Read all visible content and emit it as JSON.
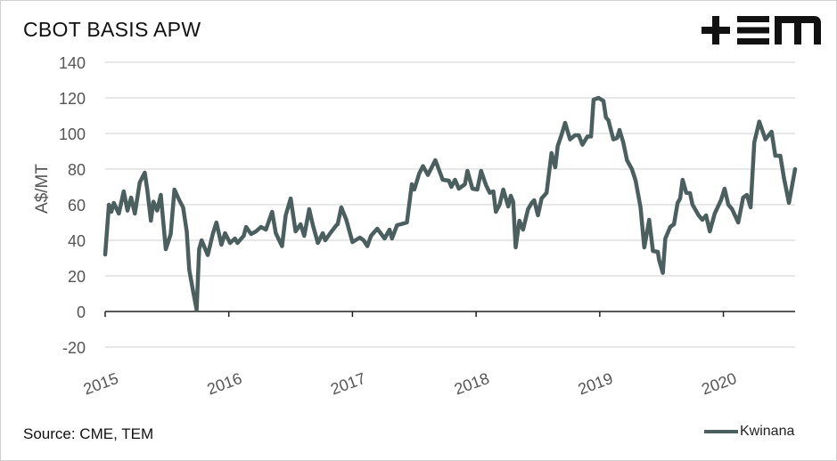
{
  "chart_data": {
    "type": "line",
    "title": "CBOT BASIS APW",
    "xlabel": "",
    "ylabel": "A$/MT",
    "ylim": [
      -20,
      140
    ],
    "yticks": [
      140,
      120,
      100,
      80,
      60,
      40,
      20,
      0,
      -20
    ],
    "xlim": [
      2015,
      2020.58
    ],
    "xticks": [
      2015,
      2016,
      2017,
      2018,
      2019,
      2020
    ],
    "xtick_labels": [
      "2015",
      "2016",
      "2017",
      "2018",
      "2019",
      "2020"
    ],
    "grid": true,
    "legend_position": "bottom-right",
    "series": [
      {
        "name": "Kwinana",
        "color": "#4b5f5f",
        "points": [
          [
            2015.0,
            32
          ],
          [
            2015.03,
            60
          ],
          [
            2015.05,
            56
          ],
          [
            2015.07,
            61
          ],
          [
            2015.11,
            55
          ],
          [
            2015.15,
            67.5
          ],
          [
            2015.18,
            56.7
          ],
          [
            2015.21,
            64
          ],
          [
            2015.24,
            55
          ],
          [
            2015.28,
            72.5
          ],
          [
            2015.32,
            78
          ],
          [
            2015.34,
            68.5
          ],
          [
            2015.37,
            51
          ],
          [
            2015.39,
            61.7
          ],
          [
            2015.42,
            56.7
          ],
          [
            2015.45,
            65.5
          ],
          [
            2015.49,
            35
          ],
          [
            2015.53,
            43.5
          ],
          [
            2015.56,
            68.5
          ],
          [
            2015.6,
            62.5
          ],
          [
            2015.63,
            58.5
          ],
          [
            2015.66,
            45
          ],
          [
            2015.68,
            23.5
          ],
          [
            2015.71,
            11.7
          ],
          [
            2015.74,
            1
          ],
          [
            2015.76,
            35
          ],
          [
            2015.78,
            40
          ],
          [
            2015.83,
            31.7
          ],
          [
            2015.87,
            43.5
          ],
          [
            2015.9,
            50
          ],
          [
            2015.94,
            37.5
          ],
          [
            2015.97,
            44
          ],
          [
            2016.01,
            38.5
          ],
          [
            2016.05,
            41
          ],
          [
            2016.07,
            38.5
          ],
          [
            2016.12,
            42.5
          ],
          [
            2016.14,
            47.5
          ],
          [
            2016.18,
            43.5
          ],
          [
            2016.22,
            45
          ],
          [
            2016.26,
            47.5
          ],
          [
            2016.3,
            46
          ],
          [
            2016.35,
            56
          ],
          [
            2016.38,
            44
          ],
          [
            2016.43,
            36.7
          ],
          [
            2016.46,
            54
          ],
          [
            2016.5,
            63.5
          ],
          [
            2016.54,
            45
          ],
          [
            2016.58,
            49
          ],
          [
            2016.61,
            42.5
          ],
          [
            2016.65,
            57.5
          ],
          [
            2016.68,
            48.5
          ],
          [
            2016.72,
            38.5
          ],
          [
            2016.76,
            44
          ],
          [
            2016.78,
            40
          ],
          [
            2016.82,
            44
          ],
          [
            2016.87,
            48.5
          ],
          [
            2016.88,
            49
          ],
          [
            2016.91,
            58.5
          ],
          [
            2016.95,
            51.5
          ],
          [
            2017.0,
            39
          ],
          [
            2017.06,
            41.5
          ],
          [
            2017.09,
            40
          ],
          [
            2017.12,
            36.7
          ],
          [
            2017.15,
            42.5
          ],
          [
            2017.2,
            46.5
          ],
          [
            2017.26,
            41
          ],
          [
            2017.3,
            46
          ],
          [
            2017.32,
            41
          ],
          [
            2017.36,
            48.5
          ],
          [
            2017.39,
            49
          ],
          [
            2017.44,
            50
          ],
          [
            2017.48,
            71.5
          ],
          [
            2017.5,
            68.5
          ],
          [
            2017.54,
            77.5
          ],
          [
            2017.57,
            81.7
          ],
          [
            2017.61,
            76.7
          ],
          [
            2017.67,
            85
          ],
          [
            2017.73,
            74
          ],
          [
            2017.78,
            73.5
          ],
          [
            2017.8,
            70
          ],
          [
            2017.83,
            74
          ],
          [
            2017.86,
            69
          ],
          [
            2017.91,
            71.5
          ],
          [
            2017.93,
            79
          ],
          [
            2017.97,
            69
          ],
          [
            2018.01,
            68.5
          ],
          [
            2018.04,
            79
          ],
          [
            2018.08,
            71
          ],
          [
            2018.11,
            66.7
          ],
          [
            2018.14,
            67.5
          ],
          [
            2018.16,
            56
          ],
          [
            2018.19,
            60
          ],
          [
            2018.22,
            68.5
          ],
          [
            2018.26,
            59
          ],
          [
            2018.28,
            65
          ],
          [
            2018.3,
            61.7
          ],
          [
            2018.32,
            36
          ],
          [
            2018.35,
            51
          ],
          [
            2018.38,
            46
          ],
          [
            2018.42,
            57.5
          ],
          [
            2018.45,
            61
          ],
          [
            2018.47,
            62.5
          ],
          [
            2018.5,
            54
          ],
          [
            2018.53,
            63.5
          ],
          [
            2018.57,
            66.7
          ],
          [
            2018.61,
            89
          ],
          [
            2018.64,
            81
          ],
          [
            2018.66,
            93
          ],
          [
            2018.69,
            99
          ],
          [
            2018.72,
            106
          ],
          [
            2018.76,
            96.7
          ],
          [
            2018.8,
            99
          ],
          [
            2018.83,
            99
          ],
          [
            2018.86,
            93.7
          ],
          [
            2018.9,
            98.3
          ],
          [
            2018.93,
            98.3
          ],
          [
            2018.95,
            119
          ],
          [
            2018.99,
            120
          ],
          [
            2019.03,
            118.3
          ],
          [
            2019.05,
            109
          ],
          [
            2019.07,
            107.5
          ],
          [
            2019.11,
            96.7
          ],
          [
            2019.14,
            97.5
          ],
          [
            2019.16,
            102
          ],
          [
            2019.19,
            95
          ],
          [
            2019.22,
            85
          ],
          [
            2019.26,
            80
          ],
          [
            2019.29,
            73.5
          ],
          [
            2019.33,
            58.5
          ],
          [
            2019.36,
            36
          ],
          [
            2019.4,
            51.5
          ],
          [
            2019.43,
            34
          ],
          [
            2019.47,
            33.5
          ],
          [
            2019.48,
            29
          ],
          [
            2019.51,
            21.7
          ],
          [
            2019.53,
            41
          ],
          [
            2019.57,
            47.5
          ],
          [
            2019.6,
            49
          ],
          [
            2019.63,
            61
          ],
          [
            2019.65,
            63.5
          ],
          [
            2019.67,
            74
          ],
          [
            2019.7,
            66.7
          ],
          [
            2019.73,
            66.5
          ],
          [
            2019.75,
            60
          ],
          [
            2019.8,
            54
          ],
          [
            2019.83,
            51.5
          ],
          [
            2019.86,
            54
          ],
          [
            2019.89,
            45
          ],
          [
            2019.93,
            55
          ],
          [
            2019.98,
            62.5
          ],
          [
            2020.01,
            69
          ],
          [
            2020.04,
            60
          ],
          [
            2020.07,
            57.5
          ],
          [
            2020.12,
            50
          ],
          [
            2020.16,
            64
          ],
          [
            2020.19,
            65.5
          ],
          [
            2020.22,
            58.5
          ],
          [
            2020.25,
            95
          ],
          [
            2020.29,
            106.7
          ],
          [
            2020.34,
            96.7
          ],
          [
            2020.39,
            101
          ],
          [
            2020.42,
            87.5
          ],
          [
            2020.46,
            87.5
          ],
          [
            2020.49,
            75
          ],
          [
            2020.53,
            61
          ],
          [
            2020.58,
            80
          ]
        ]
      }
    ],
    "source": "Source: CME, TEM",
    "logo_text": "+EM"
  }
}
